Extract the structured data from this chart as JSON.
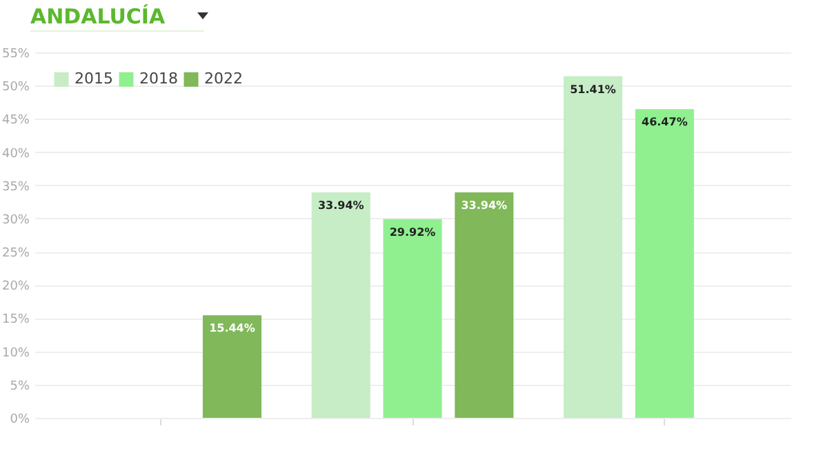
{
  "chart_data": {
    "type": "bar",
    "title": "ANDALUCÍA",
    "categories": [
      null,
      null,
      null
    ],
    "series": [
      {
        "name": "2015",
        "color": "#c6edc6",
        "values": [
          null,
          33.94,
          51.41
        ],
        "value_labels": [
          null,
          "33.94%",
          "51.41%"
        ]
      },
      {
        "name": "2018",
        "color": "#90f090",
        "values": [
          null,
          29.92,
          46.47
        ],
        "value_labels": [
          null,
          "29.92%",
          "46.47%"
        ]
      },
      {
        "name": "2022",
        "color": "#80b85a",
        "values": [
          15.44,
          33.94,
          null
        ],
        "value_labels": [
          "15.44%",
          "33.94%",
          null
        ]
      }
    ],
    "ylim": [
      0,
      55
    ],
    "yticks": [
      {
        "value": 0,
        "label": "0%"
      },
      {
        "value": 5,
        "label": "5%"
      },
      {
        "value": 10,
        "label": "10%"
      },
      {
        "value": 15,
        "label": "15%"
      },
      {
        "value": 20,
        "label": "20%"
      },
      {
        "value": 25,
        "label": "25%"
      },
      {
        "value": 30,
        "label": "30%"
      },
      {
        "value": 35,
        "label": "35%"
      },
      {
        "value": 40,
        "label": "40%"
      },
      {
        "value": 45,
        "label": "45%"
      },
      {
        "value": 50,
        "label": "50%"
      },
      {
        "value": 55,
        "label": "55%"
      }
    ],
    "grid": true,
    "legend": "top left"
  }
}
